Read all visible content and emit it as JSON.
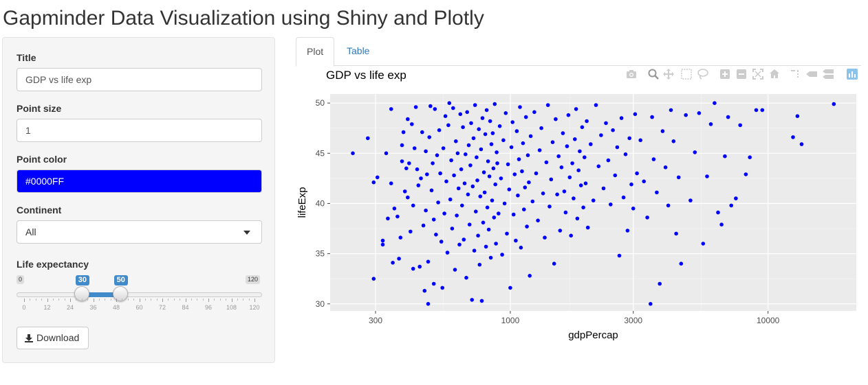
{
  "app": {
    "title": "Gapminder Data Visualization using Shiny and Plotly"
  },
  "sidebar": {
    "title_label": "Title",
    "title_value": "GDP vs life exp",
    "size_label": "Point size",
    "size_value": "1",
    "color_label": "Point color",
    "color_value": "#0000FF",
    "continent_label": "Continent",
    "continent_value": "All",
    "life_label": "Life expectancy",
    "slider": {
      "min": 0,
      "max": 120,
      "from": 30,
      "to": 50,
      "min_label": "0",
      "max_label": "120",
      "from_label": "30",
      "to_label": "50",
      "grid": [
        "0",
        "12",
        "24",
        "36",
        "48",
        "60",
        "72",
        "84",
        "96",
        "108",
        "120"
      ]
    },
    "download_label": "Download"
  },
  "tabs": [
    {
      "label": "Plot",
      "active": true
    },
    {
      "label": "Table",
      "active": false
    }
  ],
  "modebar_icons": [
    "camera-icon",
    "zoom-icon",
    "pan-icon",
    "box-select-icon",
    "lasso-icon",
    "zoom-in-icon",
    "zoom-out-icon",
    "autoscale-icon",
    "reset-axes-icon",
    "spike-lines-icon",
    "hover-closest-icon",
    "hover-compare-icon",
    "plotly-logo-icon"
  ],
  "colors": {
    "point": "#0000FF",
    "panel": "#EBEBEB",
    "accent": "#428BCA"
  },
  "chart_data": {
    "type": "scatter",
    "title": "GDP vs life exp",
    "xlabel": "gdpPercap",
    "ylabel": "lifeExp",
    "x_scale": "log",
    "xlim": [
      200,
      22000
    ],
    "ylim": [
      29.3,
      50.9
    ],
    "x_ticks": [
      300,
      1000,
      3000,
      10000
    ],
    "x_tick_labels": [
      "300",
      "1000",
      "3000",
      "10000"
    ],
    "y_ticks": [
      30,
      35,
      40,
      45,
      50
    ],
    "y_tick_labels": [
      "30",
      "35",
      "40",
      "45",
      "50"
    ],
    "grid": true,
    "point_color": "#0000FF",
    "points": [
      [
        245,
        45.0
      ],
      [
        280,
        46.5
      ],
      [
        295,
        32.5
      ],
      [
        295,
        42.1
      ],
      [
        305,
        42.6
      ],
      [
        320,
        36.3
      ],
      [
        320,
        35.9
      ],
      [
        330,
        45.0
      ],
      [
        335,
        38.5
      ],
      [
        345,
        49.4
      ],
      [
        345,
        42.0
      ],
      [
        350,
        34.1
      ],
      [
        355,
        39.5
      ],
      [
        365,
        38.7
      ],
      [
        370,
        34.5
      ],
      [
        375,
        36.6
      ],
      [
        380,
        44.2
      ],
      [
        380,
        45.8
      ],
      [
        385,
        47.1
      ],
      [
        390,
        41.2
      ],
      [
        395,
        43.5
      ],
      [
        400,
        48.4
      ],
      [
        400,
        40.6
      ],
      [
        405,
        44.0
      ],
      [
        410,
        37.2
      ],
      [
        415,
        47.9
      ],
      [
        420,
        39.8
      ],
      [
        420,
        33.5
      ],
      [
        425,
        45.5
      ],
      [
        430,
        49.6
      ],
      [
        435,
        43.4
      ],
      [
        440,
        41.8
      ],
      [
        445,
        33.7
      ],
      [
        450,
        42.5
      ],
      [
        455,
        47.1
      ],
      [
        460,
        37.8
      ],
      [
        465,
        31.3
      ],
      [
        470,
        45.2
      ],
      [
        470,
        39.3
      ],
      [
        475,
        42.9
      ],
      [
        480,
        34.2
      ],
      [
        480,
        30.0
      ],
      [
        485,
        46.6
      ],
      [
        490,
        49.7
      ],
      [
        495,
        41.3
      ],
      [
        500,
        44.0
      ],
      [
        505,
        32.0
      ],
      [
        505,
        38.4
      ],
      [
        510,
        49.4
      ],
      [
        515,
        36.9
      ],
      [
        520,
        44.8
      ],
      [
        525,
        40.1
      ],
      [
        530,
        47.3
      ],
      [
        535,
        43.0
      ],
      [
        540,
        36.2
      ],
      [
        545,
        31.6
      ],
      [
        550,
        45.5
      ],
      [
        555,
        39.0
      ],
      [
        560,
        48.7
      ],
      [
        565,
        42.2
      ],
      [
        570,
        35.1
      ],
      [
        575,
        47.8
      ],
      [
        580,
        50.0
      ],
      [
        585,
        40.4
      ],
      [
        590,
        44.3
      ],
      [
        595,
        37.5
      ],
      [
        600,
        49.5
      ],
      [
        605,
        42.8
      ],
      [
        610,
        33.4
      ],
      [
        615,
        46.2
      ],
      [
        620,
        38.8
      ],
      [
        625,
        45.0
      ],
      [
        630,
        41.5
      ],
      [
        635,
        35.9
      ],
      [
        640,
        48.9
      ],
      [
        645,
        43.4
      ],
      [
        650,
        39.8
      ],
      [
        655,
        47.6
      ],
      [
        660,
        36.4
      ],
      [
        665,
        42.0
      ],
      [
        670,
        44.9
      ],
      [
        675,
        32.6
      ],
      [
        680,
        49.1
      ],
      [
        685,
        40.9
      ],
      [
        690,
        45.8
      ],
      [
        695,
        37.9
      ],
      [
        700,
        43.8
      ],
      [
        705,
        48.0
      ],
      [
        710,
        30.4
      ],
      [
        715,
        41.7
      ],
      [
        720,
        46.5
      ],
      [
        725,
        35.3
      ],
      [
        730,
        49.8
      ],
      [
        735,
        39.2
      ],
      [
        740,
        44.6
      ],
      [
        745,
        42.3
      ],
      [
        750,
        36.8
      ],
      [
        755,
        47.4
      ],
      [
        760,
        33.9
      ],
      [
        765,
        40.7
      ],
      [
        770,
        45.4
      ],
      [
        775,
        30.3
      ],
      [
        780,
        48.5
      ],
      [
        785,
        38.1
      ],
      [
        790,
        43.1
      ],
      [
        795,
        41.1
      ],
      [
        800,
        46.9
      ],
      [
        805,
        35.7
      ],
      [
        810,
        49.3
      ],
      [
        815,
        39.6
      ],
      [
        820,
        44.2
      ],
      [
        825,
        37.4
      ],
      [
        830,
        42.7
      ],
      [
        835,
        48.2
      ],
      [
        840,
        34.6
      ],
      [
        845,
        45.9
      ],
      [
        850,
        40.3
      ],
      [
        855,
        47.0
      ],
      [
        860,
        43.5
      ],
      [
        865,
        38.6
      ],
      [
        870,
        49.9
      ],
      [
        875,
        41.9
      ],
      [
        880,
        36.0
      ],
      [
        885,
        45.1
      ],
      [
        890,
        44.0
      ],
      [
        900,
        39.0
      ],
      [
        910,
        47.7
      ],
      [
        920,
        42.5
      ],
      [
        930,
        34.9
      ],
      [
        940,
        46.3
      ],
      [
        950,
        40.0
      ],
      [
        960,
        49.0
      ],
      [
        970,
        37.0
      ],
      [
        980,
        43.9
      ],
      [
        990,
        41.4
      ],
      [
        1000,
        31.6
      ],
      [
        1010,
        45.6
      ],
      [
        1020,
        48.1
      ],
      [
        1030,
        38.9
      ],
      [
        1040,
        42.9
      ],
      [
        1050,
        36.3
      ],
      [
        1060,
        47.2
      ],
      [
        1070,
        40.8
      ],
      [
        1080,
        44.4
      ],
      [
        1090,
        49.6
      ],
      [
        1100,
        35.6
      ],
      [
        1110,
        43.2
      ],
      [
        1120,
        46.0
      ],
      [
        1130,
        39.4
      ],
      [
        1140,
        41.6
      ],
      [
        1150,
        48.6
      ],
      [
        1160,
        37.7
      ],
      [
        1170,
        44.8
      ],
      [
        1180,
        42.1
      ],
      [
        1190,
        32.8
      ],
      [
        1200,
        46.7
      ],
      [
        1220,
        40.2
      ],
      [
        1240,
        49.1
      ],
      [
        1260,
        43.0
      ],
      [
        1280,
        38.3
      ],
      [
        1300,
        45.3
      ],
      [
        1320,
        47.5
      ],
      [
        1340,
        41.0
      ],
      [
        1360,
        36.6
      ],
      [
        1380,
        44.1
      ],
      [
        1400,
        49.8
      ],
      [
        1420,
        39.7
      ],
      [
        1440,
        42.4
      ],
      [
        1460,
        46.1
      ],
      [
        1480,
        34.0
      ],
      [
        1500,
        48.4
      ],
      [
        1520,
        40.9
      ],
      [
        1540,
        44.7
      ],
      [
        1560,
        37.3
      ],
      [
        1580,
        43.6
      ],
      [
        1600,
        47.0
      ],
      [
        1620,
        41.2
      ],
      [
        1640,
        39.1
      ],
      [
        1660,
        45.7
      ],
      [
        1680,
        48.8
      ],
      [
        1700,
        42.6
      ],
      [
        1720,
        36.8
      ],
      [
        1740,
        44.0
      ],
      [
        1760,
        40.5
      ],
      [
        1780,
        46.4
      ],
      [
        1800,
        49.4
      ],
      [
        1820,
        38.5
      ],
      [
        1840,
        43.3
      ],
      [
        1860,
        45.2
      ],
      [
        1880,
        41.8
      ],
      [
        1900,
        47.6
      ],
      [
        1920,
        39.6
      ],
      [
        1940,
        44.6
      ],
      [
        1960,
        42.0
      ],
      [
        1980,
        48.2
      ],
      [
        2000,
        37.6
      ],
      [
        2050,
        45.9
      ],
      [
        2100,
        40.3
      ],
      [
        2150,
        49.8
      ],
      [
        2200,
        43.7
      ],
      [
        2250,
        46.8
      ],
      [
        2300,
        41.5
      ],
      [
        2350,
        48.0
      ],
      [
        2400,
        44.3
      ],
      [
        2450,
        39.9
      ],
      [
        2500,
        47.3
      ],
      [
        2550,
        42.8
      ],
      [
        2600,
        45.6
      ],
      [
        2650,
        34.8
      ],
      [
        2700,
        48.5
      ],
      [
        2750,
        40.6
      ],
      [
        2800,
        44.9
      ],
      [
        2850,
        37.3
      ],
      [
        2900,
        46.5
      ],
      [
        2950,
        41.9
      ],
      [
        3000,
        39.5
      ],
      [
        3050,
        48.9
      ],
      [
        3100,
        43.0
      ],
      [
        3200,
        46.3
      ],
      [
        3300,
        42.2
      ],
      [
        3400,
        38.6
      ],
      [
        3500,
        30.0
      ],
      [
        3550,
        48.6
      ],
      [
        3600,
        44.4
      ],
      [
        3700,
        41.1
      ],
      [
        3800,
        32.0
      ],
      [
        3900,
        47.2
      ],
      [
        4000,
        43.6
      ],
      [
        4100,
        39.8
      ],
      [
        4200,
        49.3
      ],
      [
        4300,
        46.2
      ],
      [
        4400,
        37.0
      ],
      [
        4500,
        42.6
      ],
      [
        4600,
        34.0
      ],
      [
        4800,
        48.8
      ],
      [
        5000,
        40.3
      ],
      [
        5200,
        45.1
      ],
      [
        5400,
        49.0
      ],
      [
        5600,
        36.0
      ],
      [
        5800,
        42.7
      ],
      [
        6000,
        47.9
      ],
      [
        6200,
        50.0
      ],
      [
        6400,
        39.1
      ],
      [
        6600,
        37.9
      ],
      [
        6800,
        44.7
      ],
      [
        7000,
        48.6
      ],
      [
        7200,
        39.8
      ],
      [
        7500,
        40.5
      ],
      [
        7800,
        47.8
      ],
      [
        8200,
        42.9
      ],
      [
        8500,
        44.6
      ],
      [
        9000,
        49.3
      ],
      [
        9500,
        49.3
      ],
      [
        12500,
        46.6
      ],
      [
        13000,
        48.7
      ],
      [
        13500,
        45.9
      ],
      [
        18000,
        49.9
      ]
    ]
  }
}
